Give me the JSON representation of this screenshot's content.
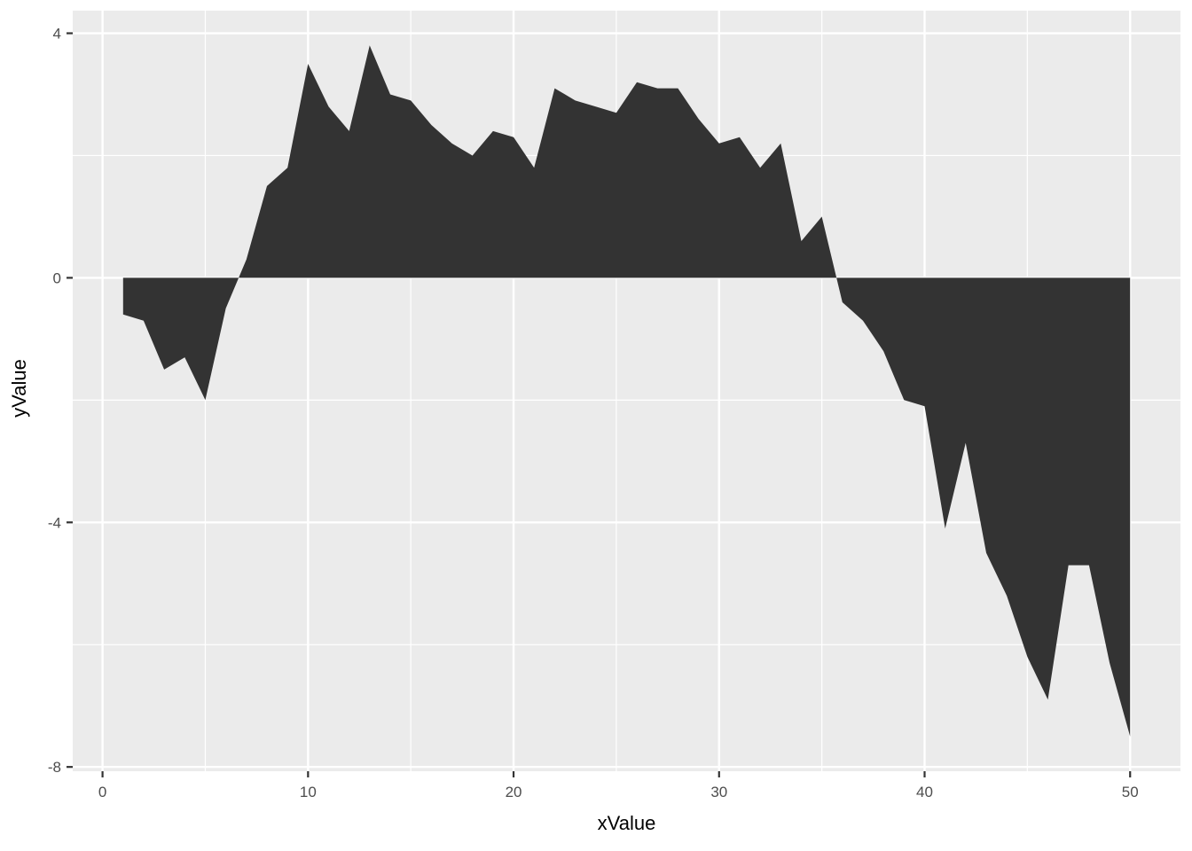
{
  "chart_data": {
    "type": "area",
    "title": "",
    "xlabel": "xValue",
    "ylabel": "yValue",
    "x": [
      1,
      2,
      3,
      4,
      5,
      6,
      7,
      8,
      9,
      10,
      11,
      12,
      13,
      14,
      15,
      16,
      17,
      18,
      19,
      20,
      21,
      22,
      23,
      24,
      25,
      26,
      27,
      28,
      29,
      30,
      31,
      32,
      33,
      34,
      35,
      36,
      37,
      38,
      39,
      40,
      41,
      42,
      43,
      44,
      45,
      46,
      47,
      48,
      49,
      50
    ],
    "values": [
      -0.6,
      -0.7,
      -1.5,
      -1.3,
      -2.0,
      -0.5,
      0.3,
      1.5,
      1.8,
      3.5,
      2.8,
      2.4,
      3.8,
      3.0,
      2.9,
      2.5,
      2.2,
      2.0,
      2.4,
      2.3,
      1.8,
      3.1,
      2.9,
      2.8,
      2.7,
      3.2,
      3.1,
      3.1,
      2.6,
      2.2,
      2.3,
      1.8,
      2.2,
      0.6,
      1.0,
      -0.4,
      -0.7,
      -1.2,
      -2.0,
      -2.1,
      -4.1,
      -2.7,
      -4.5,
      -5.2,
      -6.2,
      -6.9,
      -4.7,
      -4.7,
      -6.3,
      -7.5
    ],
    "baseline": 0,
    "xlim": [
      -1.45,
      52.45
    ],
    "ylim": [
      -8.07,
      4.37
    ],
    "x_major_ticks": [
      0,
      10,
      20,
      30,
      40,
      50
    ],
    "x_minor_ticks": [
      5,
      15,
      25,
      35,
      45
    ],
    "y_major_ticks": [
      -8,
      -4,
      0,
      4
    ],
    "y_minor_ticks": [
      -6,
      -2,
      2
    ],
    "grid": "on",
    "legend": "none",
    "style": "ggplot2"
  },
  "colors": {
    "page_bg": "#FFFFFF",
    "panel_bg": "#EBEBEB",
    "grid_major": "#FFFFFF",
    "grid_minor": "#FFFFFF",
    "area_fill": "#333333",
    "tick_mark": "#333333",
    "tick_label": "#4D4D4D",
    "axis_title": "#000000"
  }
}
